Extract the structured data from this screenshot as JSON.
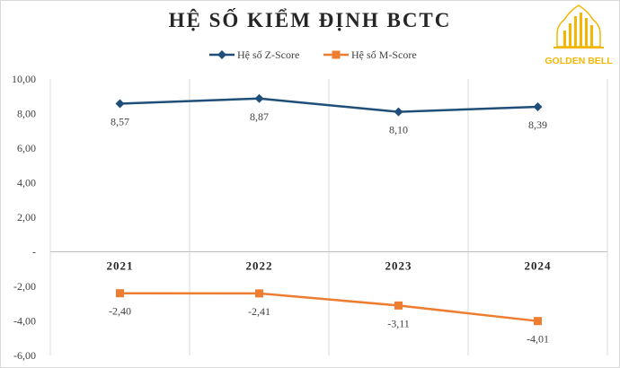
{
  "chart_data": {
    "type": "line",
    "title": "HỆ SỐ KIỂM ĐỊNH BCTC",
    "categories": [
      "2021",
      "2022",
      "2023",
      "2024"
    ],
    "series": [
      {
        "name": "Hệ số Z-Score",
        "values": [
          8.57,
          8.87,
          8.1,
          8.39
        ],
        "labels": [
          "8,57",
          "8,87",
          "8,10",
          "8,39"
        ],
        "color": "#1f4e79",
        "marker": "diamond"
      },
      {
        "name": "Hệ số M-Score",
        "values": [
          -2.4,
          -2.41,
          -3.11,
          -4.01
        ],
        "labels": [
          "-2,40",
          "-2,41",
          "-3,11",
          "-4,01"
        ],
        "color": "#ed7d31",
        "marker": "square"
      }
    ],
    "ylim": [
      -6,
      10
    ],
    "yticks": [
      10,
      8,
      6,
      4,
      2,
      0,
      -2,
      -4,
      -6
    ],
    "ytick_labels": [
      "10,00",
      "8,00",
      "6,00",
      "4,00",
      "2,00",
      "-",
      "-2,00",
      "-4,00",
      "-6,00"
    ],
    "xlabel": "",
    "ylabel": "",
    "grid": "vertical",
    "legend_position": "top"
  },
  "logo": {
    "text": "GOLDEN BELL",
    "color": "#f2b705"
  }
}
